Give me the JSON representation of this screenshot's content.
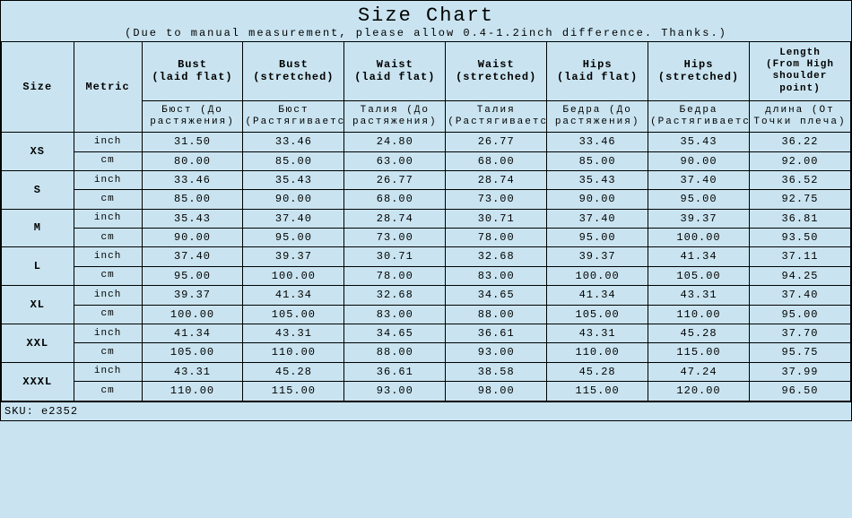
{
  "title": "Size Chart",
  "subtitle": "(Due to manual measurement, please allow 0.4-1.2inch difference. Thanks.)",
  "sku_label": "SKU:",
  "sku_value": "e2352",
  "columns": {
    "size": "Size",
    "metric": "Metric",
    "bust_flat": "Bust",
    "bust_flat_sub": "(laid flat)",
    "bust_str": "Bust",
    "bust_str_sub": "(stretched)",
    "waist_flat": "Waist",
    "waist_flat_sub": "(laid flat)",
    "waist_str": "Waist",
    "waist_str_sub": "(stretched)",
    "hips_flat": "Hips",
    "hips_flat_sub": "(laid flat)",
    "hips_str": "Hips",
    "hips_str_sub": "(stretched)",
    "length": "Length",
    "length_sub": "(From High shoulder point)"
  },
  "ru": {
    "bust_flat": "Бюст (До растяжения)",
    "bust_str": "Бюст (Растягиваетс",
    "waist_flat": "Талия (До растяжения)",
    "waist_str": "Талия (Растягиваетс",
    "hips_flat": "Бедра (До растяжения)",
    "hips_str": "Бедра (Растягиваетс",
    "length": "длина (От Точки плеча)"
  },
  "sizes": [
    {
      "name": "XS",
      "inch": [
        "31.50",
        "33.46",
        "24.80",
        "26.77",
        "33.46",
        "35.43",
        "36.22"
      ],
      "cm": [
        "80.00",
        "85.00",
        "63.00",
        "68.00",
        "85.00",
        "90.00",
        "92.00"
      ]
    },
    {
      "name": "S",
      "inch": [
        "33.46",
        "35.43",
        "26.77",
        "28.74",
        "35.43",
        "37.40",
        "36.52"
      ],
      "cm": [
        "85.00",
        "90.00",
        "68.00",
        "73.00",
        "90.00",
        "95.00",
        "92.75"
      ]
    },
    {
      "name": "M",
      "inch": [
        "35.43",
        "37.40",
        "28.74",
        "30.71",
        "37.40",
        "39.37",
        "36.81"
      ],
      "cm": [
        "90.00",
        "95.00",
        "73.00",
        "78.00",
        "95.00",
        "100.00",
        "93.50"
      ]
    },
    {
      "name": "L",
      "inch": [
        "37.40",
        "39.37",
        "30.71",
        "32.68",
        "39.37",
        "41.34",
        "37.11"
      ],
      "cm": [
        "95.00",
        "100.00",
        "78.00",
        "83.00",
        "100.00",
        "105.00",
        "94.25"
      ]
    },
    {
      "name": "XL",
      "inch": [
        "39.37",
        "41.34",
        "32.68",
        "34.65",
        "41.34",
        "43.31",
        "37.40"
      ],
      "cm": [
        "100.00",
        "105.00",
        "83.00",
        "88.00",
        "105.00",
        "110.00",
        "95.00"
      ]
    },
    {
      "name": "XXL",
      "inch": [
        "41.34",
        "43.31",
        "34.65",
        "36.61",
        "43.31",
        "45.28",
        "37.70"
      ],
      "cm": [
        "105.00",
        "110.00",
        "88.00",
        "93.00",
        "110.00",
        "115.00",
        "95.75"
      ]
    },
    {
      "name": "XXXL",
      "inch": [
        "43.31",
        "45.28",
        "36.61",
        "38.58",
        "45.28",
        "47.24",
        "37.99"
      ],
      "cm": [
        "110.00",
        "115.00",
        "93.00",
        "98.00",
        "115.00",
        "120.00",
        "96.50"
      ]
    }
  ],
  "metric_labels": {
    "inch": "inch",
    "cm": "cm"
  },
  "style": {
    "background_color": "#c9e4f0",
    "border_color": "#000000",
    "font_family": "Courier New, monospace"
  }
}
